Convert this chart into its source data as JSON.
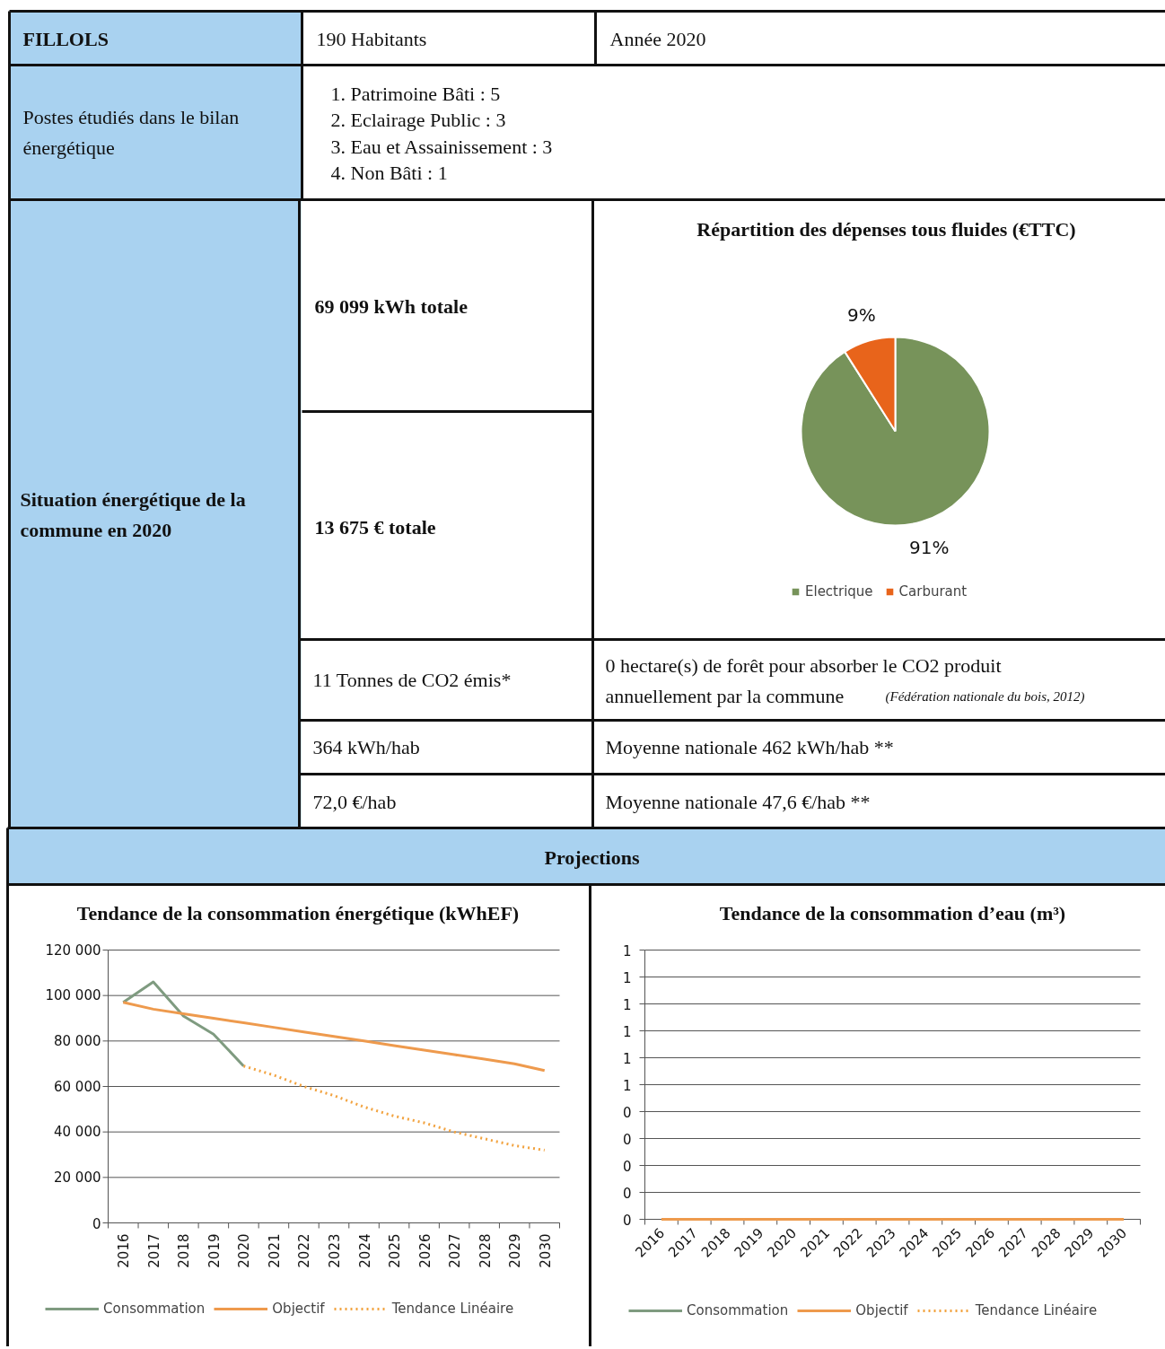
{
  "chart_data": [
    {
      "type": "other",
      "annotations": [
        "FILLOLS",
        "190 Habitants",
        "Année 2020",
        "Postes étudiés dans le bilan énergétique",
        "1. Patrimoine Bâti : 5",
        "2. Eclairage Public : 3",
        "3. Eau et Assainissement : 3",
        "4. Non Bâti : 1",
        "Situation énergétique de la commune en 2020",
        "69 099 kWh totale",
        "13 675 € totale",
        "11 Tonnes de CO2 émis*",
        "0 hectare(s) de forêt pour absorber le CO2 produit annuellement par la commune",
        "(Fédération nationale du bois, 2012)",
        "364 kWh/hab",
        "Moyenne nationale 462 kWh/hab **",
        "72,0 €/hab",
        "Moyenne nationale 47,6 €/hab **",
        "Projections"
      ]
    },
    {
      "type": "pie",
      "title": "Répartition des dépenses tous fluides (€TTC)",
      "categories": [
        "Electrique",
        "Carburant"
      ],
      "values": [
        91,
        9
      ],
      "colors": [
        "#77935a",
        "#e8641b"
      ],
      "value_labels": [
        "91%",
        "9%"
      ],
      "legend": "bottom"
    },
    {
      "type": "line",
      "title": "Tendance de la consommation énergétique (kWhEF)",
      "categories": [
        "2016",
        "2017",
        "2018",
        "2019",
        "2020",
        "2021",
        "2022",
        "2023",
        "2024",
        "2025",
        "2026",
        "2027",
        "2028",
        "2029",
        "2030"
      ],
      "series": [
        {
          "name": "Consommation",
          "color": "#7f9b80",
          "line_style": "solid",
          "values": [
            97000,
            106000,
            91000,
            83000,
            69000,
            null,
            null,
            null,
            null,
            null,
            null,
            null,
            null,
            null,
            null
          ]
        },
        {
          "name": "Objectif",
          "color": "#ee9a4d",
          "line_style": "solid",
          "values": [
            97000,
            94000,
            92000,
            90000,
            88000,
            86000,
            84000,
            82000,
            80000,
            78000,
            76000,
            74000,
            72000,
            70000,
            67000
          ]
        },
        {
          "name": "Tendance Linéaire",
          "color": "#f2a340",
          "line_style": "dotted",
          "values": [
            null,
            null,
            null,
            null,
            69000,
            65000,
            60000,
            56000,
            51000,
            47000,
            44000,
            40000,
            37000,
            34000,
            32000
          ]
        }
      ],
      "ylim": [
        0,
        120000
      ],
      "yticks": [
        {
          "value": 0,
          "label": "0"
        },
        {
          "value": 20000,
          "label": "20 000"
        },
        {
          "value": 40000,
          "label": "40 000"
        },
        {
          "value": 60000,
          "label": "60 000"
        },
        {
          "value": 80000,
          "label": "80 000"
        },
        {
          "value": 100000,
          "label": "100 000"
        },
        {
          "value": 120000,
          "label": "120 000"
        }
      ],
      "grid": "y",
      "legend": "bottom"
    },
    {
      "type": "line",
      "title": "Tendance de la consommation d’eau (m³)",
      "categories": [
        "2016",
        "2017",
        "2018",
        "2019",
        "2020",
        "2021",
        "2022",
        "2023",
        "2024",
        "2025",
        "2026",
        "2027",
        "2028",
        "2029",
        "2030"
      ],
      "series": [
        {
          "name": "Consommation",
          "color": "#7f9b80",
          "line_style": "solid",
          "values": [
            null,
            null,
            null,
            null,
            null,
            null,
            null,
            null,
            null,
            null,
            null,
            null,
            null,
            null,
            null
          ]
        },
        {
          "name": "Objectif",
          "color": "#ee9a4d",
          "line_style": "solid",
          "values": [
            0,
            0,
            0,
            0,
            0,
            0,
            0,
            0,
            0,
            0,
            0,
            0,
            0,
            0,
            0
          ]
        },
        {
          "name": "Tendance Linéaire",
          "color": "#f2a340",
          "line_style": "dotted",
          "values": [
            null,
            null,
            null,
            null,
            null,
            null,
            null,
            null,
            null,
            null,
            null,
            null,
            null,
            null,
            null
          ]
        }
      ],
      "ylim": [
        0,
        1
      ],
      "yticks": [
        {
          "value": 0,
          "label": "0"
        },
        {
          "value": 0.1,
          "label": "0"
        },
        {
          "value": 0.2,
          "label": "0"
        },
        {
          "value": 0.3,
          "label": "0"
        },
        {
          "value": 0.4,
          "label": "0"
        },
        {
          "value": 0.5,
          "label": "1"
        },
        {
          "value": 0.6,
          "label": "1"
        },
        {
          "value": 0.7,
          "label": "1"
        },
        {
          "value": 0.8,
          "label": "1"
        },
        {
          "value": 0.9,
          "label": "1"
        },
        {
          "value": 1,
          "label": "1"
        }
      ],
      "grid": "y",
      "legend": "bottom"
    }
  ]
}
